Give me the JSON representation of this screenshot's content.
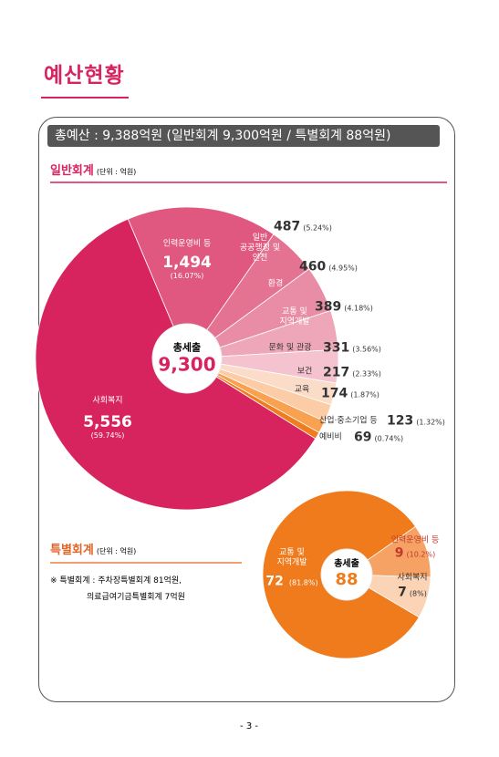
{
  "page_title": "예산현황",
  "summary": "총예산 : 9,388억원 (일반회계 9,300억원 / 특별회계 88억원)",
  "special_note": [
    "※ 특별회계 : 주차장특별회계 81억원,",
    "의료급여기금특별회계 7억원"
  ],
  "page_number": "- 3 -",
  "chart_data": [
    {
      "type": "pie",
      "title": "일반회계",
      "unit": "(단위 : 억원)",
      "center_title": "총세출",
      "total": {
        "value": 9300,
        "label": "9,300"
      },
      "categories": [
        "사회복지",
        "인력운영비 등",
        "일반\n공공행정 및\n안전",
        "환경",
        "교통 및\n지역개발",
        "문화 및 관광",
        "보건",
        "교육",
        "산업·중소기업 등",
        "예비비"
      ],
      "values": [
        5556,
        1494,
        487,
        460,
        389,
        331,
        217,
        174,
        123,
        69
      ],
      "value_labels": [
        "5,556",
        "1,494",
        "487",
        "460",
        "389",
        "331",
        "217",
        "174",
        "123",
        "69"
      ],
      "share_labels": [
        "(59.74%)",
        "(16.07%)",
        "(5.24%)",
        "(4.95%)",
        "(4.18%)",
        "(3.56%)",
        "(2.33%)",
        "(1.87%)",
        "(1.32%)",
        "(0.74%)"
      ],
      "colors": [
        "#d7245f",
        "#e0587f",
        "#e47392",
        "#e98da6",
        "#eea7b9",
        "#f4c3cf",
        "#fbdcc8",
        "#fbcca6",
        "#f8a150",
        "#ef7c1d"
      ]
    },
    {
      "type": "pie",
      "title": "특별회계",
      "unit": "(단위 : 억원)",
      "center_title": "총세출",
      "total": {
        "value": 88,
        "label": "88"
      },
      "categories": [
        "교통 및\n지역개발",
        "인력운영비 등",
        "사회복지"
      ],
      "values": [
        72,
        9,
        7
      ],
      "value_labels": [
        "72",
        "9",
        "7"
      ],
      "share_labels": [
        "(81.8%)",
        "(10.2%)",
        "(8%)"
      ],
      "colors": [
        "#ef7b1c",
        "#f6a264",
        "#fbd3b5"
      ]
    }
  ]
}
